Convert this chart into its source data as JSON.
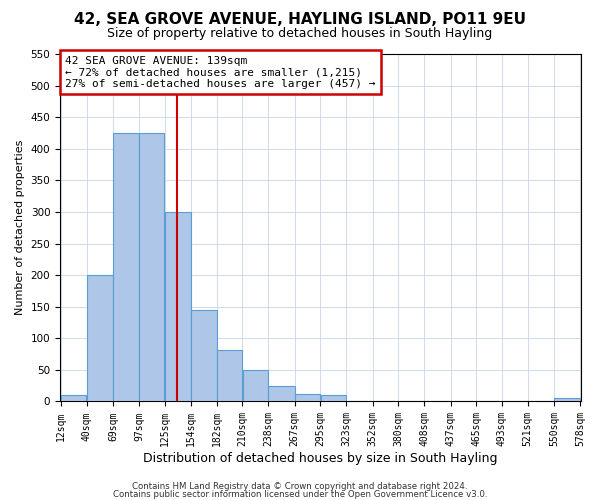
{
  "title": "42, SEA GROVE AVENUE, HAYLING ISLAND, PO11 9EU",
  "subtitle": "Size of property relative to detached houses in South Hayling",
  "xlabel": "Distribution of detached houses by size in South Hayling",
  "ylabel": "Number of detached properties",
  "bin_edges": [
    12,
    40,
    69,
    97,
    125,
    154,
    182,
    210,
    238,
    267,
    295,
    323,
    352,
    380,
    408,
    437,
    465,
    493,
    521,
    550,
    578
  ],
  "counts": [
    10,
    200,
    425,
    425,
    300,
    145,
    82,
    50,
    25,
    12,
    10,
    0,
    0,
    0,
    0,
    0,
    0,
    0,
    0,
    5
  ],
  "bar_color": "#aec6e8",
  "bar_edge_color": "#5a9fd4",
  "property_line_x": 139,
  "property_line_color": "#cc0000",
  "annotation_title": "42 SEA GROVE AVENUE: 139sqm",
  "annotation_line1": "← 72% of detached houses are smaller (1,215)",
  "annotation_line2": "27% of semi-detached houses are larger (457) →",
  "annotation_box_color": "#cc0000",
  "ylim": [
    0,
    550
  ],
  "yticks": [
    0,
    50,
    100,
    150,
    200,
    250,
    300,
    350,
    400,
    450,
    500,
    550
  ],
  "footnote1": "Contains HM Land Registry data © Crown copyright and database right 2024.",
  "footnote2": "Contains public sector information licensed under the Open Government Licence v3.0.",
  "bg_color": "#ffffff",
  "grid_color": "#c8d4e8",
  "title_fontsize": 11,
  "subtitle_fontsize": 9,
  "xlabel_fontsize": 9,
  "ylabel_fontsize": 8,
  "tick_fontsize": 7,
  "annotation_fontsize": 8
}
